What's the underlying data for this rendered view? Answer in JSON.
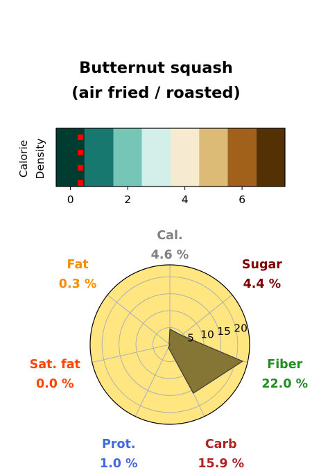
{
  "chart_data": [
    {
      "type": "heatmap",
      "title_lines": [
        "Butternut squash",
        "(air fried / roasted)"
      ],
      "ylabel_lines": [
        "Calorie",
        "Density"
      ],
      "x_ticks": [
        "0",
        "2",
        "4",
        "6"
      ],
      "x_tick_values": [
        0,
        2,
        4,
        6
      ],
      "xlim": [
        -0.5,
        7.5
      ],
      "cells": [
        0,
        1,
        2,
        3,
        4,
        5,
        6,
        7
      ],
      "colors": [
        "#003c30",
        "#16786f",
        "#76c6b8",
        "#d4eee9",
        "#f6ebd0",
        "#dcbb76",
        "#a2611a",
        "#543005"
      ],
      "marker": {
        "x": 0.35,
        "color": "#ff0000",
        "count": 4
      }
    },
    {
      "type": "radar",
      "categories": [
        {
          "name": "Cal.",
          "value_label": "4.6 %",
          "value": 4.6,
          "color": "#808080"
        },
        {
          "name": "Sugar",
          "value_label": "4.4 %",
          "value": 4.4,
          "color": "#800000"
        },
        {
          "name": "Fiber",
          "value_label": "22.0 %",
          "value": 22.0,
          "color": "#228b22"
        },
        {
          "name": "Carb",
          "value_label": "15.9 %",
          "value": 15.9,
          "color": "#b22222"
        },
        {
          "name": "Prot.",
          "value_label": "1.0 %",
          "value": 1.0,
          "color": "#4169e1"
        },
        {
          "name": "Sat. fat",
          "value_label": "0.0 %",
          "value": 0.0,
          "color": "#ff4500"
        },
        {
          "name": "Fat",
          "value_label": "0.3 %",
          "value": 0.3,
          "color": "#ff8c00"
        }
      ],
      "r_ticks": [
        5,
        10,
        15,
        20
      ],
      "r_tick_labels": [
        "5",
        "10",
        "15",
        "20"
      ],
      "rmax": 23.5,
      "background": "#ffe680",
      "fill_color": "#7f7030"
    }
  ]
}
